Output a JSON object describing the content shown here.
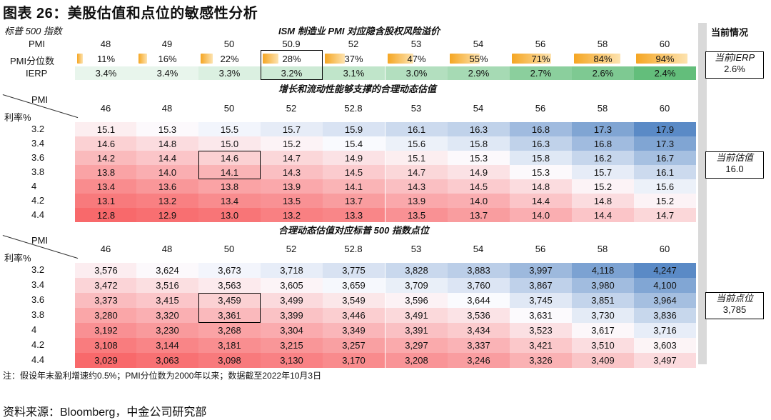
{
  "title": "图表 26：美股估值和点位的敏感性分析",
  "top_left_label": "标普 500 指数",
  "section1_title": "ISM 制造业 PMI 对应隐含股权风险溢价",
  "section2_title": "增长和流动性能够支撑的合理动态估值",
  "section3_title": "合理动态估值对应标普 500 指数点位",
  "right_header": "当前情况",
  "row_labels": {
    "pmi": "PMI",
    "pmi_pct": "PMI分位数",
    "ierp": "IERP"
  },
  "corner": {
    "pmi": "PMI",
    "rate": "利率%"
  },
  "side_boxes": {
    "ierp": {
      "label": "当前IERP",
      "value": "2.6%"
    },
    "valuation": {
      "label": "当前估值",
      "value": "16.0"
    },
    "level": {
      "label": "当前点位",
      "value": "3,785"
    }
  },
  "note": "注：假设年末盈利增速约0.5%；PMI分位数为2000年以来；数据截至2022年10月3日",
  "source": "资料来源：Bloomberg，中金公司研究部",
  "chart_data": [
    {
      "type": "table",
      "title": "ISM 制造业 PMI 对应隐含股权风险溢价",
      "pmi": [
        "48",
        "49",
        "50",
        "50.9",
        "52",
        "53",
        "54",
        "56",
        "58",
        "60"
      ],
      "pmi_percentile": [
        "11%",
        "16%",
        "22%",
        "28%",
        "37%",
        "47%",
        "55%",
        "71%",
        "84%",
        "94%"
      ],
      "pmi_percentile_values": [
        11,
        16,
        22,
        28,
        37,
        47,
        55,
        71,
        84,
        94
      ],
      "ierp": [
        "3.4%",
        "3.4%",
        "3.3%",
        "3.2%",
        "3.1%",
        "3.0%",
        "2.9%",
        "2.7%",
        "2.6%",
        "2.4%"
      ],
      "ierp_values": [
        3.4,
        3.4,
        3.3,
        3.2,
        3.1,
        3.0,
        2.9,
        2.7,
        2.6,
        2.4
      ],
      "highlight_column": 3,
      "colors": {
        "bar": "#f5a623",
        "ierp_low": "#e8f5ec",
        "ierp_high": "#63be7b"
      }
    },
    {
      "type": "heatmap",
      "title": "增长和流动性能够支撑的合理动态估值",
      "pmi": [
        "46",
        "48",
        "50",
        "52",
        "52.8",
        "53",
        "54",
        "56",
        "58",
        "60"
      ],
      "rate": [
        "3.2",
        "3.4",
        "3.6",
        "3.8",
        "4",
        "4.2",
        "4.4"
      ],
      "values": [
        [
          "15.1",
          "15.3",
          "15.5",
          "15.7",
          "15.9",
          "16.1",
          "16.3",
          "16.8",
          "17.3",
          "17.9"
        ],
        [
          "14.6",
          "14.8",
          "15.0",
          "15.2",
          "15.4",
          "15.6",
          "15.8",
          "16.3",
          "16.8",
          "17.3"
        ],
        [
          "14.2",
          "14.4",
          "14.6",
          "14.7",
          "14.9",
          "15.1",
          "15.3",
          "15.8",
          "16.2",
          "16.7"
        ],
        [
          "13.8",
          "14.0",
          "14.1",
          "14.3",
          "14.5",
          "14.7",
          "14.9",
          "15.3",
          "15.7",
          "16.1"
        ],
        [
          "13.4",
          "13.6",
          "13.8",
          "13.9",
          "14.1",
          "14.3",
          "14.5",
          "14.8",
          "15.2",
          "15.6"
        ],
        [
          "13.1",
          "13.2",
          "13.4",
          "13.5",
          "13.7",
          "13.9",
          "14.0",
          "14.4",
          "14.8",
          "15.2"
        ],
        [
          "12.8",
          "12.9",
          "13.0",
          "13.2",
          "13.3",
          "13.5",
          "13.7",
          "14.0",
          "14.4",
          "14.7"
        ]
      ],
      "highlight": {
        "col": 2,
        "rows": [
          2,
          3
        ]
      },
      "colors": {
        "low": "#f8696b",
        "mid": "#fcfcff",
        "high": "#5a8ac6"
      }
    },
    {
      "type": "heatmap",
      "title": "合理动态估值对应标普 500 指数点位",
      "pmi": [
        "46",
        "48",
        "50",
        "52",
        "52.8",
        "53",
        "54",
        "56",
        "58",
        "60"
      ],
      "rate": [
        "3.2",
        "3.4",
        "3.6",
        "3.8",
        "4",
        "4.2",
        "4.4"
      ],
      "values": [
        [
          "3,576",
          "3,624",
          "3,673",
          "3,718",
          "3,775",
          "3,828",
          "3,883",
          "3,997",
          "4,118",
          "4,247"
        ],
        [
          "3,472",
          "3,516",
          "3,563",
          "3,605",
          "3,659",
          "3,709",
          "3,760",
          "3,867",
          "3,980",
          "4,100"
        ],
        [
          "3,373",
          "3,415",
          "3,459",
          "3,499",
          "3,549",
          "3,596",
          "3,644",
          "3,745",
          "3,851",
          "3,964"
        ],
        [
          "3,280",
          "3,320",
          "3,361",
          "3,399",
          "3,446",
          "3,491",
          "3,536",
          "3,631",
          "3,730",
          "3,836"
        ],
        [
          "3,192",
          "3,230",
          "3,268",
          "3,304",
          "3,349",
          "3,391",
          "3,434",
          "3,523",
          "3,617",
          "3,716"
        ],
        [
          "3,108",
          "3,144",
          "3,181",
          "3,215",
          "3,257",
          "3,297",
          "3,337",
          "3,421",
          "3,510",
          "3,603"
        ],
        [
          "3,029",
          "3,063",
          "3,098",
          "3,130",
          "3,170",
          "3,208",
          "3,246",
          "3,326",
          "3,409",
          "3,497"
        ]
      ],
      "highlight": {
        "col": 2,
        "rows": [
          2,
          3
        ]
      },
      "colors": {
        "low": "#f8696b",
        "mid": "#fcfcff",
        "high": "#5a8ac6"
      }
    }
  ]
}
